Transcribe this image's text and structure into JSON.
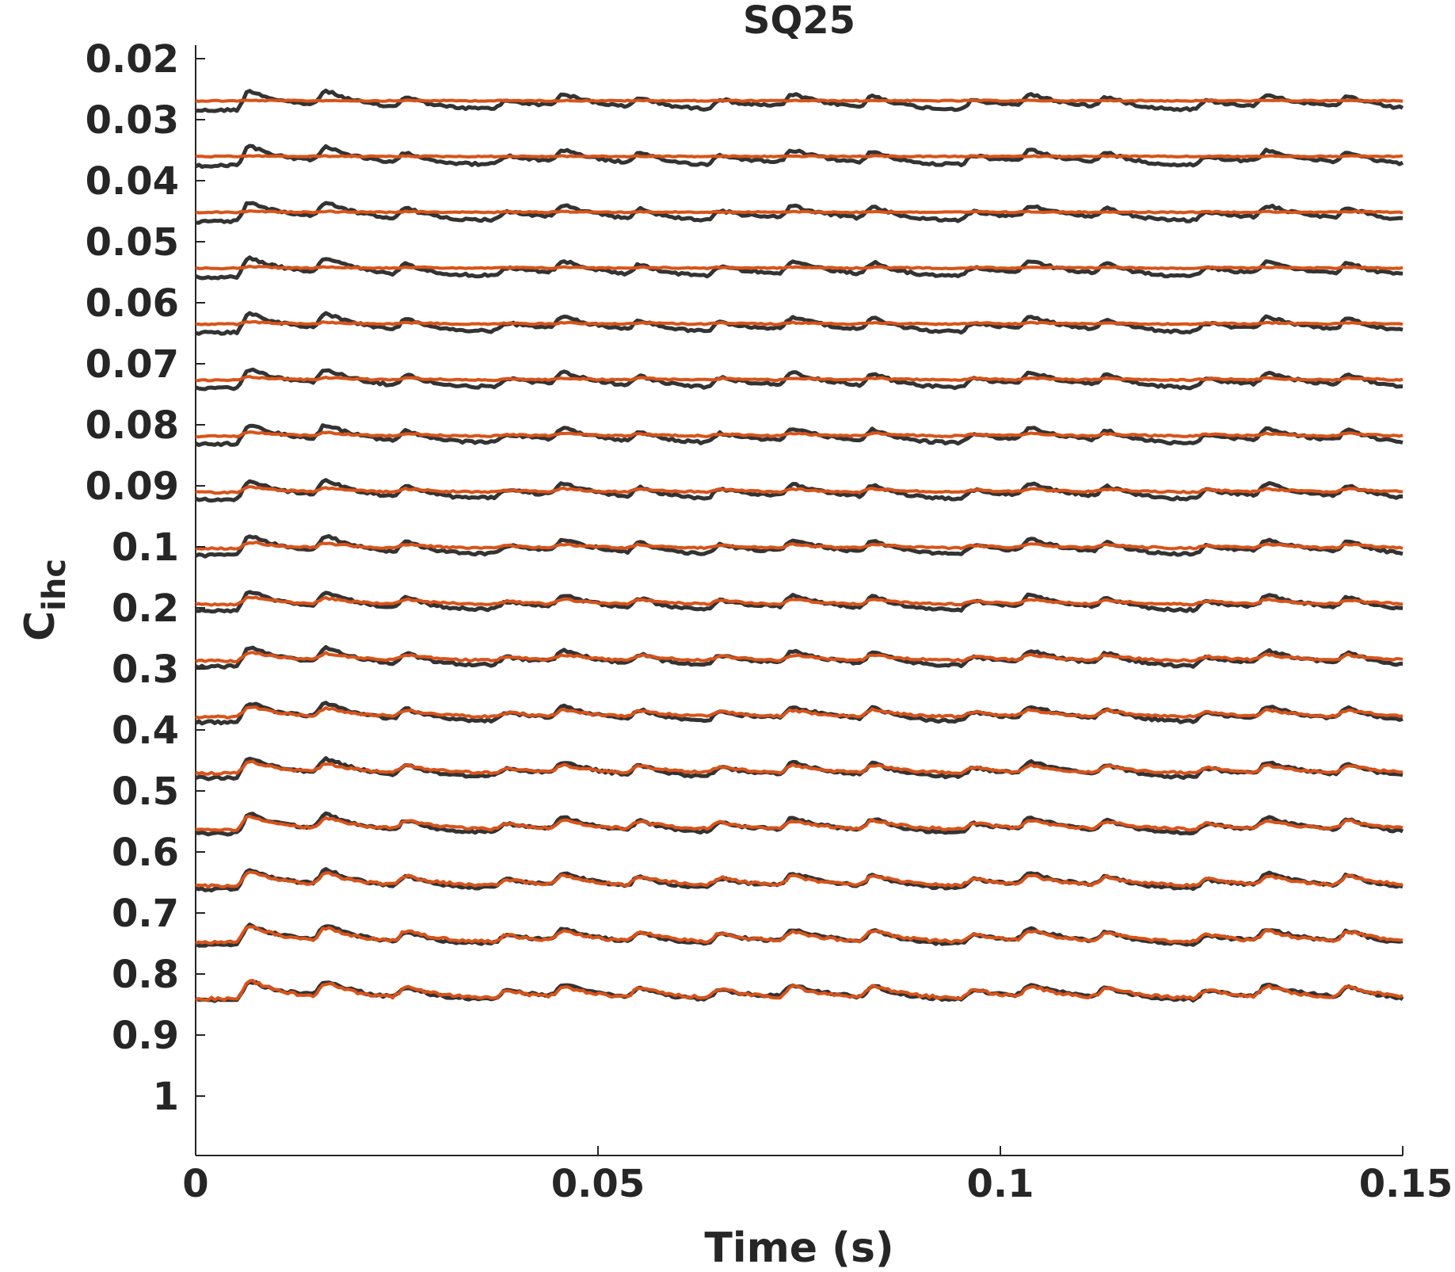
{
  "chart_data": {
    "type": "line",
    "title": "SQ25",
    "xlabel": "Time (s)",
    "ylabel_main": "C",
    "ylabel_sub": "ihc",
    "xlim": [
      0,
      0.15
    ],
    "x_ticks": [
      0,
      0.05,
      0.1,
      0.15
    ],
    "x_tick_labels": [
      "0",
      "0.05",
      "0.1",
      "0.15"
    ],
    "y_tick_labels": [
      "0.02",
      "0.03",
      "0.04",
      "0.05",
      "0.06",
      "0.07",
      "0.08",
      "0.09",
      "0.1",
      "0.2",
      "0.3",
      "0.4",
      "0.5",
      "0.6",
      "0.7",
      "0.8",
      "0.9",
      "1"
    ],
    "trace_labels": [
      "0.03",
      "0.04",
      "0.05",
      "0.06",
      "0.07",
      "0.08",
      "0.09",
      "0.1",
      "0.2",
      "0.3",
      "0.4",
      "0.5",
      "0.6",
      "0.7",
      "0.8",
      "0.9",
      "1"
    ],
    "event_times": [
      0.006,
      0.0155,
      0.0255,
      0.038,
      0.045,
      0.0545,
      0.0645,
      0.0735,
      0.0835,
      0.096,
      0.103,
      0.1125,
      0.125,
      0.1325,
      0.1425
    ],
    "event_amplitudes": [
      1.0,
      0.75,
      0.6,
      0.4,
      0.6,
      0.55,
      0.5,
      0.6,
      0.65,
      0.45,
      0.6,
      0.55,
      0.45,
      0.6,
      0.6
    ],
    "grid": false,
    "legend": "none",
    "series": [
      {
        "color": "#333333",
        "response_gain": 1.0
      },
      {
        "color": "#d95319",
        "response_gain_range": [
          0.02,
          1.0
        ]
      }
    ]
  }
}
